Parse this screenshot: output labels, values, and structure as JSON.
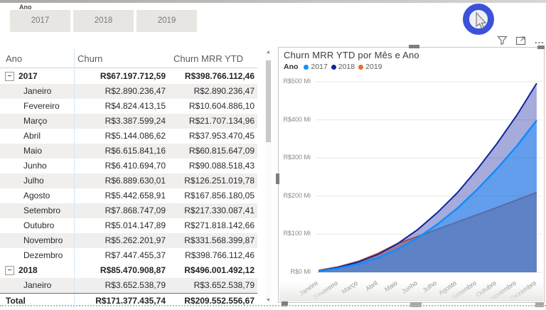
{
  "top": {
    "slicer": {
      "label": "Ano",
      "buttons": [
        "2017",
        "2018",
        "2019"
      ]
    }
  },
  "table": {
    "columns": [
      "Ano",
      "Churn",
      "Churn MRR YTD"
    ],
    "rows": [
      {
        "label": "2017",
        "churn": "R$67.197.712,59",
        "ytd": "R$398.766.112,46",
        "kind": "year",
        "expander": "-"
      },
      {
        "label": "Janeiro",
        "churn": "R$2.890.236,47",
        "ytd": "R$2.890.236,47",
        "kind": "month",
        "striped": true
      },
      {
        "label": "Fevereiro",
        "churn": "R$4.824.413,15",
        "ytd": "R$10.604.886,10",
        "kind": "month",
        "striped": false
      },
      {
        "label": "Março",
        "churn": "R$3.387.599,24",
        "ytd": "R$21.707.134,96",
        "kind": "month",
        "striped": true
      },
      {
        "label": "Abril",
        "churn": "R$5.144.086,62",
        "ytd": "R$37.953.470,45",
        "kind": "month",
        "striped": false
      },
      {
        "label": "Maio",
        "churn": "R$6.615.841,16",
        "ytd": "R$60.815.647,09",
        "kind": "month",
        "striped": true
      },
      {
        "label": "Junho",
        "churn": "R$6.410.694,70",
        "ytd": "R$90.088.518,43",
        "kind": "month",
        "striped": false
      },
      {
        "label": "Julho",
        "churn": "R$6.889.630,01",
        "ytd": "R$126.251.019,78",
        "kind": "month",
        "striped": true
      },
      {
        "label": "Agosto",
        "churn": "R$5.442.658,91",
        "ytd": "R$167.856.180,05",
        "kind": "month",
        "striped": false
      },
      {
        "label": "Setembro",
        "churn": "R$7.868.747,09",
        "ytd": "R$217.330.087,41",
        "kind": "month",
        "striped": true
      },
      {
        "label": "Outubro",
        "churn": "R$5.014.147,89",
        "ytd": "R$271.818.142,66",
        "kind": "month",
        "striped": false
      },
      {
        "label": "Novembro",
        "churn": "R$5.262.201,97",
        "ytd": "R$331.568.399,87",
        "kind": "month",
        "striped": true
      },
      {
        "label": "Dezembro",
        "churn": "R$7.447.455,37",
        "ytd": "R$398.766.112,46",
        "kind": "month",
        "striped": false
      },
      {
        "label": "2018",
        "churn": "R$85.470.908,87",
        "ytd": "R$496.001.492,12",
        "kind": "year",
        "expander": "-"
      },
      {
        "label": "Janeiro",
        "churn": "R$3.652.538,79",
        "ytd": "R$3.652.538,79",
        "kind": "month",
        "striped": true
      },
      {
        "label": "Total",
        "churn": "R$171.377.435,74",
        "ytd": "R$209.552.556,67",
        "kind": "total"
      }
    ]
  },
  "chart": {
    "title": "Churn MRR YTD por Mês e Ano",
    "legend_label": "Ano",
    "icon_names": [
      "filter-icon",
      "focus-mode-icon",
      "more-options-icon"
    ],
    "more_options_glyph": "..."
  },
  "chart_data": {
    "type": "area",
    "title": "Churn MRR YTD por Mês e Ano",
    "xlabel": "",
    "ylabel": "",
    "x": [
      "Janeiro",
      "Fevereiro",
      "Março",
      "Abril",
      "Maio",
      "Junho",
      "Julho",
      "Agosto",
      "Setembro",
      "Outubro",
      "Novembro",
      "Dezembro"
    ],
    "y_ticks": [
      "R$0 Mi",
      "R$100 Mi",
      "R$200 Mi",
      "R$300 Mi",
      "R$400 Mi",
      "R$500 Mi"
    ],
    "ylim": [
      0,
      500
    ],
    "unit": "R$ millions (Mi)",
    "grid": true,
    "legend_position": "top",
    "series": [
      {
        "name": "2017",
        "color": "#118DFF",
        "fill": "rgba(17,141,255,0.45)",
        "line_width": 2.5,
        "values": [
          2.89,
          10.6,
          21.71,
          37.95,
          60.82,
          90.09,
          126.25,
          167.86,
          217.33,
          271.82,
          331.57,
          398.77
        ]
      },
      {
        "name": "2018",
        "color": "#12239E",
        "fill": "rgba(18,35,158,0.38)",
        "line_width": 2,
        "values": [
          3.65,
          13.2,
          27.0,
          47.2,
          75.6,
          112.1,
          157.0,
          208.8,
          270.3,
          338.1,
          412.4,
          496.0
        ]
      },
      {
        "name": "2019",
        "color": "#E66C37",
        "fill": "rgba(230,108,55,0.55)",
        "line_width": 2,
        "values": [
          5.2,
          14.5,
          29.0,
          50.0,
          76.0,
          94.0,
          113.0,
          132.0,
          151.0,
          170.0,
          190.0,
          209.55
        ]
      }
    ]
  }
}
